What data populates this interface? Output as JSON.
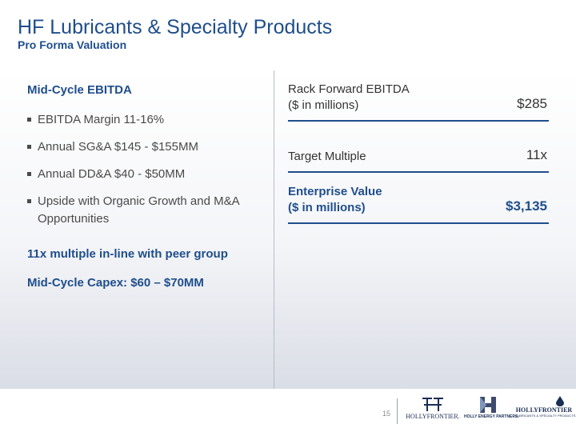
{
  "header": {
    "title": "HF Lubricants & Specialty Products",
    "subtitle": "Pro Forma Valuation"
  },
  "left": {
    "heading": "Mid-Cycle EBITDA",
    "bullets": [
      "EBITDA Margin 11-16%",
      "Annual SG&A $145 - $155MM",
      "Annual DD&A $40 - $50MM",
      "Upside with Organic Growth and M&A Opportunities"
    ],
    "note1": "11x multiple in-line with peer group",
    "note2": "Mid-Cycle Capex:  $60 – $70MM"
  },
  "right": {
    "rows": [
      {
        "label_line1": "Rack Forward EBITDA",
        "label_line2": "($ in millions)",
        "value": "$285"
      },
      {
        "label_line1": "Target Multiple",
        "label_line2": "",
        "value": "11x"
      },
      {
        "label_line1": "Enterprise Value",
        "label_line2": "($ in millions)",
        "value": "$3,135"
      }
    ]
  },
  "footer": {
    "page_number": "15",
    "logos": [
      {
        "name": "HollyFrontier",
        "text": "HOLLYFRONTIER."
      },
      {
        "name": "Holly Energy Partners",
        "text": "HOLLY ENERGY PARTNERS."
      },
      {
        "name": "HollyFrontier Lubricants",
        "text": "HOLLYFRONTIER",
        "subtext": "LUBRICANTS & SPECIALTY PRODUCTS"
      }
    ]
  },
  "colors": {
    "accent": "#1f4e8c",
    "text": "#4a4a4a",
    "divider": "#b7bcc6"
  }
}
